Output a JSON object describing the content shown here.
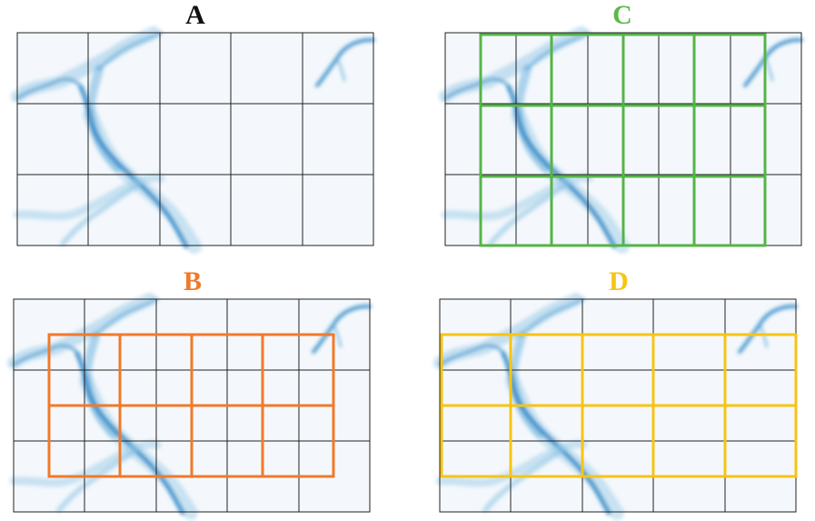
{
  "panels": [
    {
      "id": "A",
      "label": "A",
      "label_color": "#111111",
      "overlay": "none"
    },
    {
      "id": "B",
      "label": "B",
      "label_color": "#f07a2a",
      "overlay": "orange"
    },
    {
      "id": "C",
      "label": "C",
      "label_color": "#5bb84a",
      "overlay": "green"
    },
    {
      "id": "D",
      "label": "D",
      "label_color": "#f5c518",
      "overlay": "yellow"
    }
  ],
  "colors": {
    "background": "#f4f8fc",
    "base_grid": "#222222",
    "river": "#2b86c5",
    "green": "#55b447",
    "orange": "#f07a2a",
    "yellow": "#f7c414"
  }
}
